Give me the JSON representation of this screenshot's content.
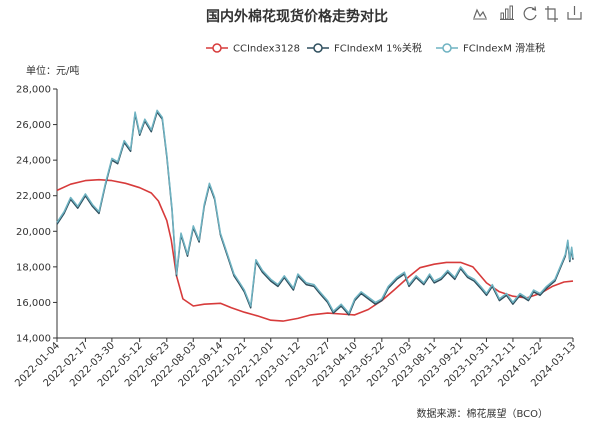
{
  "colors": {
    "cc": "#d73b3b",
    "fc1": "#2f4f5e",
    "fcs": "#6fb3c2",
    "axis": "#333333"
  },
  "toolbar": {
    "icons": [
      "line-chart-icon",
      "bar-chart-icon",
      "restore-icon",
      "data-view-icon",
      "save-image-icon"
    ]
  },
  "chart_data": {
    "type": "line",
    "title": "国内外棉花现货价格走势对比",
    "unit_label": "单位：元/吨",
    "source": "数据来源：棉花展望（BCO）",
    "ylim": [
      14000,
      28000
    ],
    "y_ticks": [
      "14,000",
      "16,000",
      "18,000",
      "20,000",
      "22,000",
      "24,000",
      "26,000",
      "28,000"
    ],
    "x_range": [
      "2022-01-04",
      "2024-03-13"
    ],
    "x_ticks": [
      "2022-01-04",
      "2022-02-17",
      "2022-03-30",
      "2022-05-12",
      "2022-06-23",
      "2022-08-03",
      "2022-09-14",
      "2022-10-21",
      "2022-12-01",
      "2023-01-12",
      "2023-02-27",
      "2023-04-10",
      "2023-05-22",
      "2023-07-03",
      "2023-08-11",
      "2023-09-21",
      "2023-10-31",
      "2023-12-11",
      "2024-01-22",
      "2024-03-13"
    ],
    "grid": false,
    "legend_position": "top-right",
    "series": [
      {
        "name": "CCIndex3128",
        "color_key": "cc",
        "points": [
          [
            "2022-01-04",
            22300
          ],
          [
            "2022-01-25",
            22650
          ],
          [
            "2022-02-17",
            22850
          ],
          [
            "2022-03-10",
            22900
          ],
          [
            "2022-03-30",
            22850
          ],
          [
            "2022-04-20",
            22700
          ],
          [
            "2022-05-12",
            22450
          ],
          [
            "2022-05-30",
            22150
          ],
          [
            "2022-06-10",
            21700
          ],
          [
            "2022-06-23",
            20600
          ],
          [
            "2022-06-30",
            19500
          ],
          [
            "2022-07-08",
            17500
          ],
          [
            "2022-07-18",
            16200
          ],
          [
            "2022-08-03",
            15800
          ],
          [
            "2022-08-20",
            15900
          ],
          [
            "2022-09-14",
            15950
          ],
          [
            "2022-10-01",
            15700
          ],
          [
            "2022-10-21",
            15450
          ],
          [
            "2022-11-10",
            15250
          ],
          [
            "2022-12-01",
            15000
          ],
          [
            "2022-12-20",
            14950
          ],
          [
            "2023-01-12",
            15100
          ],
          [
            "2023-02-01",
            15300
          ],
          [
            "2023-02-27",
            15400
          ],
          [
            "2023-03-20",
            15350
          ],
          [
            "2023-04-10",
            15300
          ],
          [
            "2023-05-01",
            15600
          ],
          [
            "2023-05-22",
            16100
          ],
          [
            "2023-06-10",
            16700
          ],
          [
            "2023-07-03",
            17450
          ],
          [
            "2023-07-20",
            17950
          ],
          [
            "2023-08-11",
            18150
          ],
          [
            "2023-08-30",
            18250
          ],
          [
            "2023-09-21",
            18250
          ],
          [
            "2023-10-10",
            18000
          ],
          [
            "2023-10-31",
            17100
          ],
          [
            "2023-11-20",
            16600
          ],
          [
            "2023-12-11",
            16350
          ],
          [
            "2024-01-01",
            16250
          ],
          [
            "2024-01-22",
            16500
          ],
          [
            "2024-02-10",
            16900
          ],
          [
            "2024-02-28",
            17150
          ],
          [
            "2024-03-13",
            17200
          ]
        ]
      },
      {
        "name": "FCIndexM 1%关税",
        "color_key": "fc1",
        "points": [
          [
            "2022-01-04",
            20400
          ],
          [
            "2022-01-15",
            21000
          ],
          [
            "2022-01-25",
            21800
          ],
          [
            "2022-02-05",
            21300
          ],
          [
            "2022-02-17",
            22000
          ],
          [
            "2022-02-28",
            21400
          ],
          [
            "2022-03-10",
            21000
          ],
          [
            "2022-03-20",
            22600
          ],
          [
            "2022-03-30",
            24000
          ],
          [
            "2022-04-08",
            23800
          ],
          [
            "2022-04-18",
            25000
          ],
          [
            "2022-04-28",
            24500
          ],
          [
            "2022-05-05",
            26600
          ],
          [
            "2022-05-12",
            25400
          ],
          [
            "2022-05-20",
            26200
          ],
          [
            "2022-05-30",
            25600
          ],
          [
            "2022-06-08",
            26700
          ],
          [
            "2022-06-16",
            26300
          ],
          [
            "2022-06-23",
            24200
          ],
          [
            "2022-07-01",
            21200
          ],
          [
            "2022-07-08",
            17500
          ],
          [
            "2022-07-15",
            19800
          ],
          [
            "2022-07-25",
            18600
          ],
          [
            "2022-08-03",
            20200
          ],
          [
            "2022-08-12",
            19400
          ],
          [
            "2022-08-20",
            21400
          ],
          [
            "2022-08-28",
            22600
          ],
          [
            "2022-09-05",
            21800
          ],
          [
            "2022-09-14",
            19800
          ],
          [
            "2022-09-25",
            18600
          ],
          [
            "2022-10-05",
            17500
          ],
          [
            "2022-10-14",
            17000
          ],
          [
            "2022-10-21",
            16600
          ],
          [
            "2022-10-31",
            15700
          ],
          [
            "2022-11-08",
            18300
          ],
          [
            "2022-11-18",
            17700
          ],
          [
            "2022-12-01",
            17200
          ],
          [
            "2022-12-12",
            16900
          ],
          [
            "2022-12-22",
            17400
          ],
          [
            "2023-01-05",
            16700
          ],
          [
            "2023-01-12",
            17500
          ],
          [
            "2023-01-25",
            17000
          ],
          [
            "2023-02-06",
            16900
          ],
          [
            "2023-02-15",
            16500
          ],
          [
            "2023-02-27",
            16000
          ],
          [
            "2023-03-08",
            15400
          ],
          [
            "2023-03-20",
            15800
          ],
          [
            "2023-04-01",
            15300
          ],
          [
            "2023-04-10",
            16100
          ],
          [
            "2023-04-20",
            16500
          ],
          [
            "2023-05-01",
            16200
          ],
          [
            "2023-05-12",
            15900
          ],
          [
            "2023-05-22",
            16100
          ],
          [
            "2023-06-01",
            16800
          ],
          [
            "2023-06-14",
            17300
          ],
          [
            "2023-06-26",
            17600
          ],
          [
            "2023-07-03",
            16900
          ],
          [
            "2023-07-14",
            17400
          ],
          [
            "2023-07-26",
            17000
          ],
          [
            "2023-08-04",
            17500
          ],
          [
            "2023-08-11",
            17100
          ],
          [
            "2023-08-22",
            17300
          ],
          [
            "2023-09-01",
            17700
          ],
          [
            "2023-09-12",
            17300
          ],
          [
            "2023-09-21",
            17900
          ],
          [
            "2023-10-02",
            17400
          ],
          [
            "2023-10-12",
            17200
          ],
          [
            "2023-10-22",
            16800
          ],
          [
            "2023-10-31",
            16400
          ],
          [
            "2023-11-09",
            16900
          ],
          [
            "2023-11-20",
            16100
          ],
          [
            "2023-12-01",
            16400
          ],
          [
            "2023-12-11",
            15900
          ],
          [
            "2023-12-22",
            16400
          ],
          [
            "2024-01-04",
            16100
          ],
          [
            "2024-01-12",
            16600
          ],
          [
            "2024-01-22",
            16400
          ],
          [
            "2024-02-01",
            16800
          ],
          [
            "2024-02-14",
            17200
          ],
          [
            "2024-02-22",
            17900
          ],
          [
            "2024-03-01",
            18600
          ],
          [
            "2024-03-05",
            19400
          ],
          [
            "2024-03-08",
            18300
          ],
          [
            "2024-03-11",
            19000
          ],
          [
            "2024-03-13",
            18400
          ]
        ]
      },
      {
        "name": "FCIndexM 滑准税",
        "color_key": "fcs",
        "points": [
          [
            "2022-01-04",
            20500
          ],
          [
            "2022-01-15",
            21100
          ],
          [
            "2022-01-25",
            21900
          ],
          [
            "2022-02-05",
            21400
          ],
          [
            "2022-02-17",
            22100
          ],
          [
            "2022-02-28",
            21500
          ],
          [
            "2022-03-10",
            21100
          ],
          [
            "2022-03-20",
            22700
          ],
          [
            "2022-03-30",
            24100
          ],
          [
            "2022-04-08",
            23900
          ],
          [
            "2022-04-18",
            25100
          ],
          [
            "2022-04-28",
            24600
          ],
          [
            "2022-05-05",
            26700
          ],
          [
            "2022-05-12",
            25500
          ],
          [
            "2022-05-20",
            26300
          ],
          [
            "2022-05-30",
            25700
          ],
          [
            "2022-06-08",
            26800
          ],
          [
            "2022-06-16",
            26400
          ],
          [
            "2022-06-23",
            24300
          ],
          [
            "2022-07-01",
            21300
          ],
          [
            "2022-07-08",
            17600
          ],
          [
            "2022-07-15",
            19900
          ],
          [
            "2022-07-25",
            18700
          ],
          [
            "2022-08-03",
            20300
          ],
          [
            "2022-08-12",
            19500
          ],
          [
            "2022-08-20",
            21500
          ],
          [
            "2022-08-28",
            22700
          ],
          [
            "2022-09-05",
            21900
          ],
          [
            "2022-09-14",
            19900
          ],
          [
            "2022-09-25",
            18700
          ],
          [
            "2022-10-05",
            17600
          ],
          [
            "2022-10-14",
            17100
          ],
          [
            "2022-10-21",
            16700
          ],
          [
            "2022-10-31",
            15800
          ],
          [
            "2022-11-08",
            18400
          ],
          [
            "2022-11-18",
            17800
          ],
          [
            "2022-12-01",
            17300
          ],
          [
            "2022-12-12",
            17000
          ],
          [
            "2022-12-22",
            17500
          ],
          [
            "2023-01-05",
            16800
          ],
          [
            "2023-01-12",
            17600
          ],
          [
            "2023-01-25",
            17100
          ],
          [
            "2023-02-06",
            17000
          ],
          [
            "2023-02-15",
            16600
          ],
          [
            "2023-02-27",
            16100
          ],
          [
            "2023-03-08",
            15500
          ],
          [
            "2023-03-20",
            15900
          ],
          [
            "2023-04-01",
            15400
          ],
          [
            "2023-04-10",
            16200
          ],
          [
            "2023-04-20",
            16600
          ],
          [
            "2023-05-01",
            16300
          ],
          [
            "2023-05-12",
            16000
          ],
          [
            "2023-05-22",
            16200
          ],
          [
            "2023-06-01",
            16900
          ],
          [
            "2023-06-14",
            17400
          ],
          [
            "2023-06-26",
            17700
          ],
          [
            "2023-07-03",
            17000
          ],
          [
            "2023-07-14",
            17500
          ],
          [
            "2023-07-26",
            17100
          ],
          [
            "2023-08-04",
            17600
          ],
          [
            "2023-08-11",
            17200
          ],
          [
            "2023-08-22",
            17400
          ],
          [
            "2023-09-01",
            17800
          ],
          [
            "2023-09-12",
            17400
          ],
          [
            "2023-09-21",
            18000
          ],
          [
            "2023-10-02",
            17500
          ],
          [
            "2023-10-12",
            17300
          ],
          [
            "2023-10-22",
            16900
          ],
          [
            "2023-10-31",
            16500
          ],
          [
            "2023-11-09",
            17000
          ],
          [
            "2023-11-20",
            16200
          ],
          [
            "2023-12-01",
            16500
          ],
          [
            "2023-12-11",
            16000
          ],
          [
            "2023-12-22",
            16500
          ],
          [
            "2024-01-04",
            16200
          ],
          [
            "2024-01-12",
            16700
          ],
          [
            "2024-01-22",
            16500
          ],
          [
            "2024-02-01",
            16900
          ],
          [
            "2024-02-14",
            17300
          ],
          [
            "2024-02-22",
            18000
          ],
          [
            "2024-03-01",
            18700
          ],
          [
            "2024-03-05",
            19500
          ],
          [
            "2024-03-08",
            18400
          ],
          [
            "2024-03-11",
            19100
          ],
          [
            "2024-03-13",
            18500
          ]
        ]
      }
    ]
  }
}
